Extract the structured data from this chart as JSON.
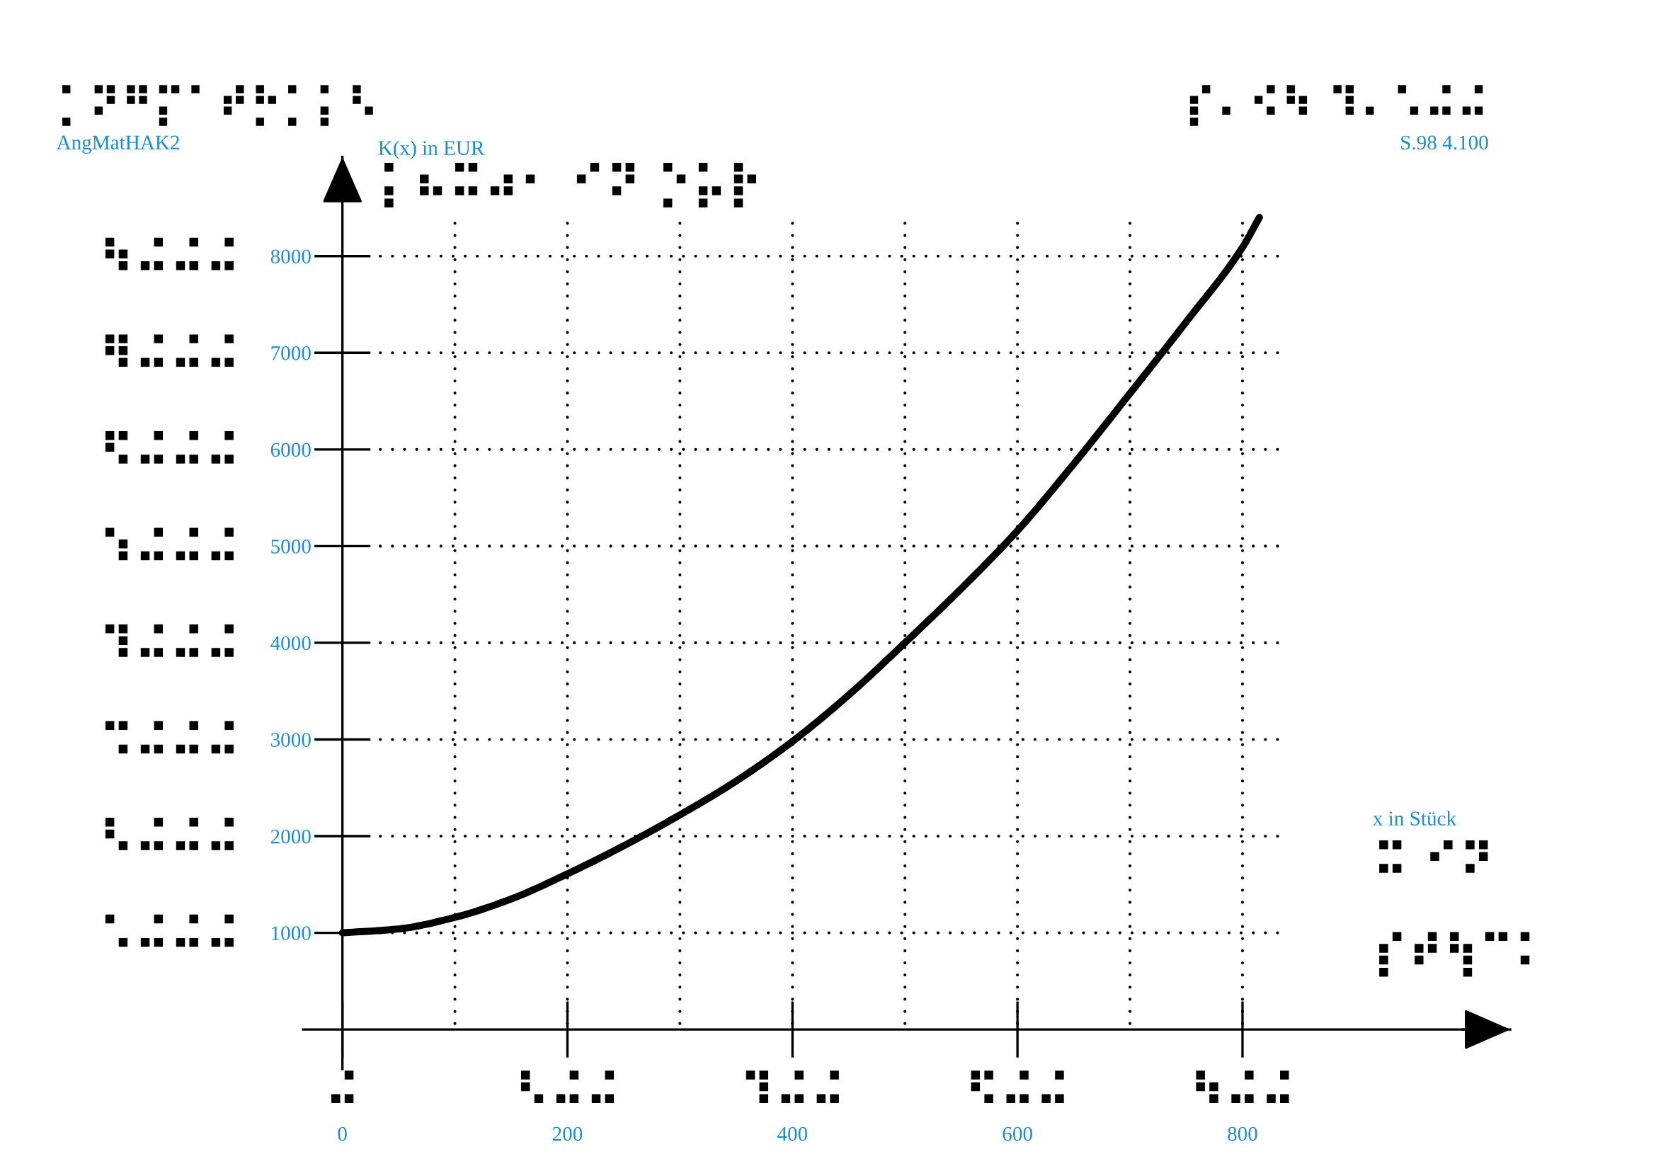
{
  "chart_data": {
    "type": "line",
    "x": [
      0,
      50,
      100,
      150,
      200,
      250,
      300,
      350,
      400,
      450,
      500,
      550,
      600,
      650,
      700,
      750,
      800,
      815
    ],
    "values": [
      1000,
      1040,
      1160,
      1350,
      1610,
      1900,
      2220,
      2570,
      2980,
      3460,
      4000,
      4560,
      5160,
      5850,
      6580,
      7320,
      8090,
      8400
    ],
    "color": "#000000",
    "line_style": "solid",
    "xlim": [
      -35,
      1038
    ],
    "ylim": [
      -410,
      9026
    ],
    "xticks": [
      0,
      {
        "value": 100,
        "label": null
      },
      200,
      {
        "value": 300,
        "label": null
      },
      400,
      {
        "value": 500,
        "label": null
      },
      600,
      {
        "value": 700,
        "label": null
      },
      800
    ],
    "yticks": [
      1000,
      2000,
      3000,
      4000,
      5000,
      6000,
      7000,
      8000
    ],
    "xlabel": "x in Stück\n⠭ ⠊⠝\n⡎⠞⢳⠉⠅",
    "ylabel": "K(x) in EUR\n⡅⠦⠭⠴⠂ ⠊⠝ ⡑⡥⡗",
    "annotations": [
      "⡁⠝⠛⡍⠁⠞⡓⡁⡅⠣\nAngMatHAK2",
      "⡎⠄⠪⠳ ⠹⠄⠡⠬⠬\nS.98 4.100",
      "⠬",
      "⠣⠬⠬",
      "⠹⠬⠬",
      "⠫⠬⠬",
      "⠳⠬⠬",
      "⠡⠬⠬⠬",
      "⠣⠬⠬⠬",
      "⠩⠬⠬⠬",
      "⠹⠬⠬⠬",
      "⠱⠬⠬⠬",
      "⠫⠬⠬⠬",
      "⠻⠬⠬⠬",
      "⠳⠬⠬⠬"
    ],
    "grid": true
  }
}
